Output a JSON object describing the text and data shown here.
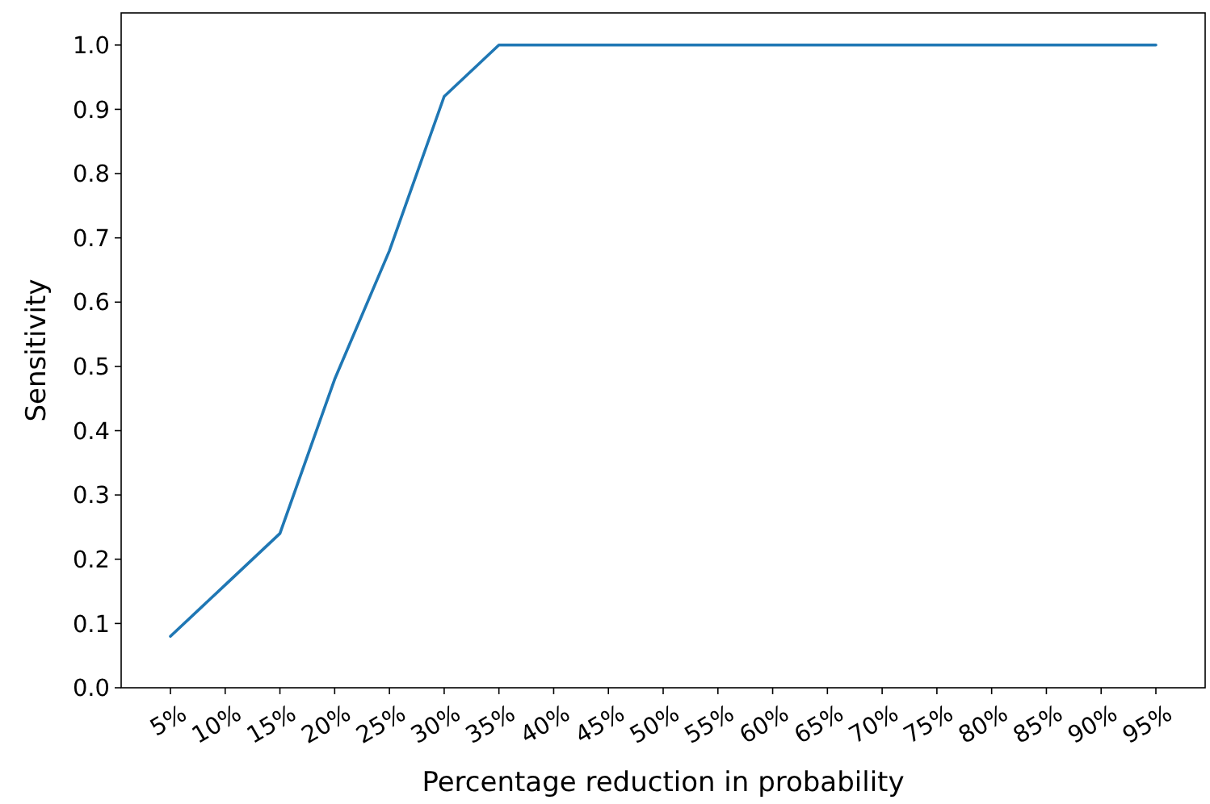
{
  "chart_data": {
    "type": "line",
    "xlabel": "Percentage reduction in probability",
    "ylabel": "Sensitivity",
    "categories": [
      "5%",
      "10%",
      "15%",
      "20%",
      "25%",
      "30%",
      "35%",
      "40%",
      "45%",
      "50%",
      "55%",
      "60%",
      "65%",
      "70%",
      "75%",
      "80%",
      "85%",
      "90%",
      "95%"
    ],
    "series": [
      {
        "color": "#1f77b4",
        "values": [
          0.08,
          0.16,
          0.24,
          0.48,
          0.68,
          0.92,
          1.0,
          1.0,
          1.0,
          1.0,
          1.0,
          1.0,
          1.0,
          1.0,
          1.0,
          1.0,
          1.0,
          1.0,
          1.0
        ]
      }
    ],
    "ylim": [
      0,
      1.05
    ],
    "yticks": [
      {
        "value": 0,
        "label": "0.0"
      },
      0.1,
      0.2,
      0.3,
      0.4,
      0.5,
      0.6,
      0.7,
      0.8,
      0.9,
      {
        "value": 1,
        "label": "1.0"
      }
    ],
    "grid": false,
    "marker": "none",
    "line_style": "solid"
  }
}
